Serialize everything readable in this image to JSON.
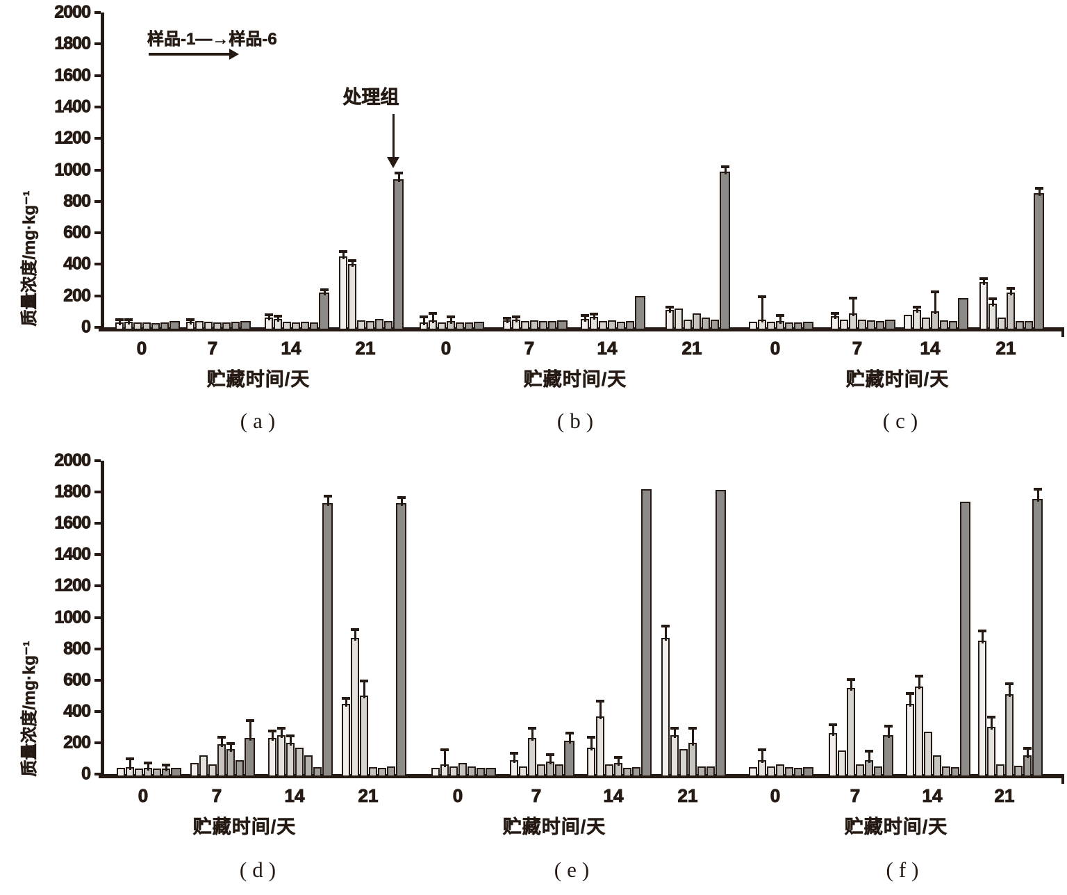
{
  "figure": {
    "ink_color": "#261b14",
    "legend": {
      "text": "样品-1—→样品-6"
    },
    "annotation": {
      "text": "处理组"
    },
    "y_axis": {
      "title": "质量浓度/mg·kg⁻¹",
      "tick_labels": [
        "2000",
        "1800",
        "1600",
        "1400",
        "1200",
        "1000",
        "800",
        "600",
        "400",
        "200",
        "0"
      ]
    },
    "x_axis": {
      "title": "贮藏时间/天",
      "tick_labels": [
        "0",
        "7",
        "14",
        "21"
      ]
    },
    "series_colors": [
      "#f1efed",
      "#e4e2df",
      "#d6d4d1",
      "#c6c4c1",
      "#b4b2af",
      "#9e9c99",
      "#8d8b88"
    ]
  },
  "chart_data": {
    "type": "bar",
    "title": "",
    "xlabel": "贮藏时间/天",
    "ylabel": "质量浓度/mg·kg⁻¹",
    "ylim": [
      0,
      2000
    ],
    "y_tick_step": 200,
    "grid": false,
    "legend_position": "top-left",
    "categories": [
      "0",
      "7",
      "14",
      "21"
    ],
    "series_names": [
      "样品-1",
      "样品-2",
      "样品-3",
      "样品-4",
      "样品-5",
      "样品-6",
      "处理组"
    ],
    "panels": [
      {
        "id": "a",
        "label": "(a)",
        "groups": [
          {
            "day": "0",
            "values": [
              30,
              35,
              30,
              30,
              25,
              30,
              40
            ],
            "errors": [
              12,
              10,
              0,
              0,
              0,
              0,
              0
            ]
          },
          {
            "day": "7",
            "values": [
              35,
              40,
              35,
              30,
              30,
              35,
              40
            ],
            "errors": [
              10,
              0,
              0,
              0,
              0,
              0,
              0
            ]
          },
          {
            "day": "14",
            "values": [
              60,
              55,
              35,
              30,
              35,
              30,
              220
            ],
            "errors": [
              15,
              10,
              0,
              0,
              0,
              0,
              15
            ]
          },
          {
            "day": "21",
            "values": [
              450,
              400,
              45,
              40,
              55,
              40,
              940
            ],
            "errors": [
              25,
              20,
              0,
              0,
              0,
              0,
              35
            ]
          }
        ]
      },
      {
        "id": "b",
        "label": "(b)",
        "groups": [
          {
            "day": "0",
            "values": [
              30,
              45,
              30,
              40,
              30,
              30,
              35
            ],
            "errors": [
              30,
              40,
              0,
              20,
              0,
              0,
              0
            ]
          },
          {
            "day": "7",
            "values": [
              45,
              50,
              40,
              45,
              40,
              40,
              45
            ],
            "errors": [
              10,
              10,
              0,
              0,
              0,
              0,
              0
            ]
          },
          {
            "day": "14",
            "values": [
              55,
              65,
              40,
              45,
              35,
              40,
              200
            ],
            "errors": [
              15,
              15,
              0,
              0,
              0,
              0,
              0
            ]
          },
          {
            "day": "21",
            "values": [
              110,
              120,
              50,
              90,
              60,
              50,
              990
            ],
            "errors": [
              15,
              0,
              0,
              0,
              0,
              0,
              25
            ]
          }
        ]
      },
      {
        "id": "c",
        "label": "(c)",
        "groups": [
          {
            "day": "0",
            "values": [
              35,
              50,
              35,
              40,
              30,
              30,
              35
            ],
            "errors": [
              0,
              140,
              0,
              30,
              0,
              0,
              0
            ]
          },
          {
            "day": "7",
            "values": [
              70,
              50,
              90,
              50,
              45,
              40,
              50
            ],
            "errors": [
              15,
              0,
              90,
              0,
              0,
              0,
              0
            ]
          },
          {
            "day": "14",
            "values": [
              80,
              110,
              60,
              100,
              45,
              40,
              185
            ],
            "errors": [
              0,
              15,
              0,
              120,
              0,
              0,
              0
            ]
          },
          {
            "day": "21",
            "values": [
              285,
              150,
              60,
              220,
              40,
              40,
              850
            ],
            "errors": [
              20,
              25,
              0,
              25,
              0,
              0,
              30
            ]
          }
        ]
      },
      {
        "id": "d",
        "label": "(d)",
        "groups": [
          {
            "day": "0",
            "values": [
              40,
              45,
              35,
              40,
              35,
              35,
              40
            ],
            "errors": [
              0,
              50,
              0,
              25,
              0,
              20,
              0
            ]
          },
          {
            "day": "7",
            "values": [
              70,
              120,
              60,
              190,
              160,
              90,
              230
            ],
            "errors": [
              0,
              0,
              0,
              40,
              30,
              0,
              105
            ]
          },
          {
            "day": "14",
            "values": [
              230,
              250,
              200,
              170,
              120,
              45,
              1730
            ],
            "errors": [
              40,
              40,
              40,
              0,
              0,
              0,
              40
            ]
          },
          {
            "day": "21",
            "values": [
              450,
              870,
              500,
              45,
              40,
              50,
              1730
            ],
            "errors": [
              30,
              50,
              90,
              0,
              0,
              0,
              30
            ]
          }
        ]
      },
      {
        "id": "e",
        "label": "(e)",
        "groups": [
          {
            "day": "0",
            "values": [
              40,
              60,
              50,
              70,
              50,
              40,
              40
            ],
            "errors": [
              0,
              90,
              0,
              0,
              0,
              0,
              0
            ]
          },
          {
            "day": "7",
            "values": [
              90,
              50,
              230,
              60,
              80,
              60,
              215
            ],
            "errors": [
              40,
              0,
              60,
              0,
              40,
              0,
              40
            ]
          },
          {
            "day": "14",
            "values": [
              170,
              370,
              60,
              70,
              40,
              45,
              1820
            ],
            "errors": [
              60,
              90,
              0,
              30,
              0,
              0,
              0
            ]
          },
          {
            "day": "21",
            "values": [
              870,
              250,
              160,
              200,
              50,
              50,
              1815
            ],
            "errors": [
              70,
              40,
              0,
              90,
              0,
              0,
              0
            ]
          }
        ]
      },
      {
        "id": "f",
        "label": "(f)",
        "groups": [
          {
            "day": "0",
            "values": [
              45,
              90,
              50,
              60,
              45,
              40,
              45
            ],
            "errors": [
              0,
              60,
              0,
              0,
              0,
              0,
              0
            ]
          },
          {
            "day": "7",
            "values": [
              260,
              150,
              550,
              60,
              90,
              50,
              250
            ],
            "errors": [
              50,
              0,
              50,
              0,
              50,
              0,
              50
            ]
          },
          {
            "day": "14",
            "values": [
              450,
              560,
              270,
              120,
              50,
              45,
              1740
            ],
            "errors": [
              60,
              60,
              0,
              0,
              0,
              0,
              0
            ]
          },
          {
            "day": "21",
            "values": [
              850,
              300,
              60,
              510,
              55,
              120,
              1755
            ],
            "errors": [
              60,
              60,
              0,
              60,
              0,
              40,
              60
            ]
          }
        ]
      }
    ]
  }
}
